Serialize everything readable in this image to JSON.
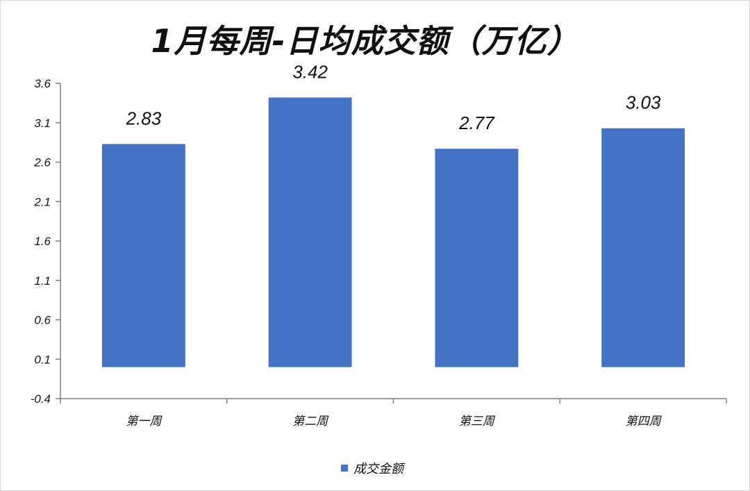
{
  "chart_data": {
    "type": "bar",
    "title": "1月每周-日均成交额（万亿）",
    "categories": [
      "第一周",
      "第二周",
      "第三周",
      "第四周"
    ],
    "series": [
      {
        "name": "成交金额",
        "values": [
          2.83,
          3.42,
          2.77,
          3.03
        ]
      }
    ],
    "data_labels": [
      "2.83",
      "3.42",
      "2.77",
      "3.03"
    ],
    "ylim": [
      -0.4,
      3.6
    ],
    "yticks": [
      -0.4,
      0.1,
      0.6,
      1.1,
      1.6,
      2.1,
      2.6,
      3.1,
      3.6
    ],
    "ytick_labels": [
      "-0.4",
      "0.1",
      "0.6",
      "1.1",
      "1.6",
      "2.1",
      "2.6",
      "3.1",
      "3.6"
    ],
    "bar_base": 0,
    "grid": false,
    "legend_position": "bottom",
    "colors": {
      "bar": "#4472c4",
      "axis": "#7f7f7f"
    }
  }
}
